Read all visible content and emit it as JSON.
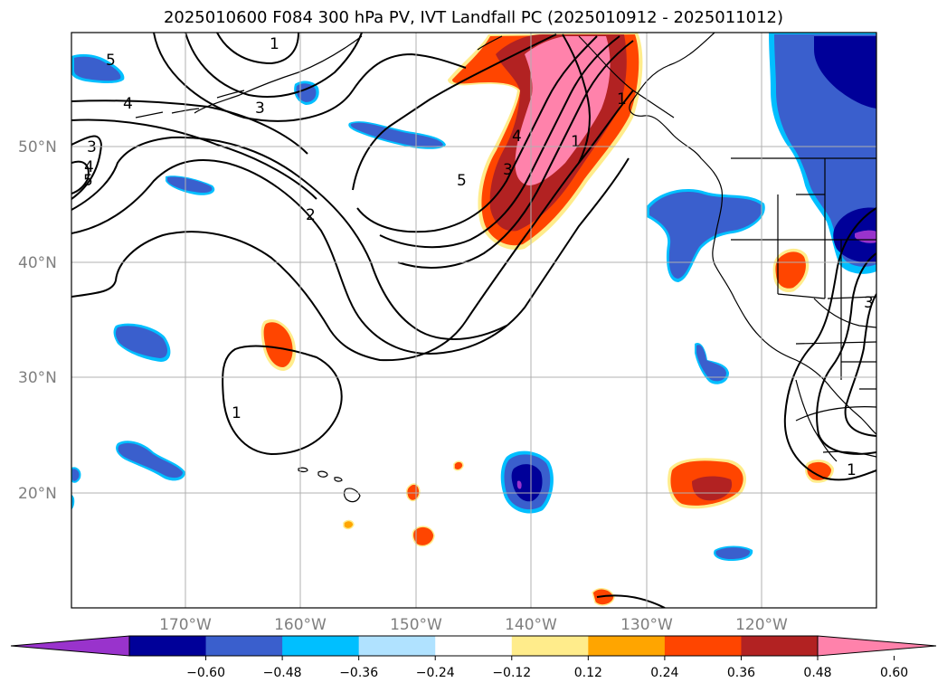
{
  "title": "2025010600 F084 300 hPa PV, IVT Landfall PC (2025010912 - 2025011012)",
  "lat_labels": [
    "50°N",
    "40°N",
    "30°N",
    "20°N"
  ],
  "lon_labels": [
    "170°W",
    "160°W",
    "150°W",
    "140°W",
    "130°W",
    "120°W"
  ],
  "contour_labels": [
    "1",
    "3",
    "4",
    "5",
    "3",
    "4",
    "5",
    "2",
    "5",
    "4",
    "3",
    "1",
    "1",
    "1",
    "1",
    "3"
  ],
  "colorbar": {
    "ticks": [
      "−0.60",
      "−0.48",
      "−0.36",
      "−0.24",
      "−0.12",
      "0.12",
      "0.24",
      "0.36",
      "0.48",
      "0.60"
    ],
    "colors": [
      "#9933cc",
      "#000099",
      "#3a5fcd",
      "#00bfff",
      "#b0e2ff",
      "#ffffff",
      "#ffec8b",
      "#ffa500",
      "#ff4500",
      "#b22222",
      "#ff82ab"
    ]
  }
}
